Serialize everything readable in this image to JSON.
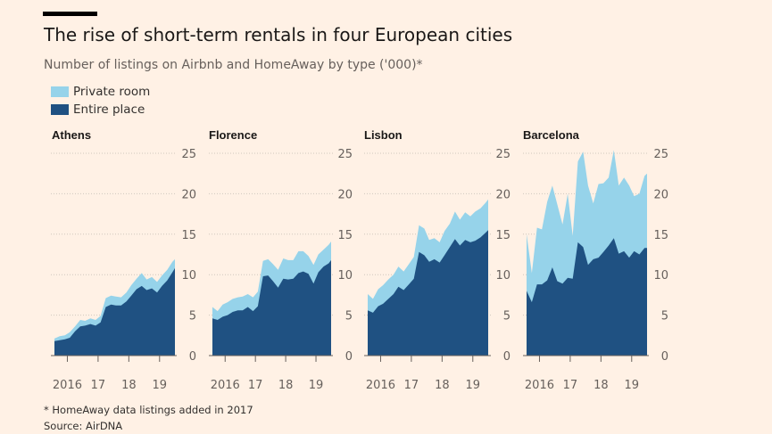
{
  "header": {
    "title": "The rise of short-term rentals in four European cities",
    "subtitle": "Number of listings on Airbnb and HomeAway by type ('000)*"
  },
  "legend": [
    {
      "label": "Private room",
      "color": "#96d3ea"
    },
    {
      "label": "Entire place",
      "color": "#1f5182"
    }
  ],
  "footer": {
    "footnote": "* HomeAway data listings added in 2017",
    "source": "Source: AirDNA"
  },
  "chart_data": [
    {
      "type": "area",
      "title": "Athens",
      "ylim": [
        0,
        25
      ],
      "yticks": [
        0,
        5,
        10,
        15,
        20,
        25
      ],
      "xticks": [
        {
          "label": "2016",
          "x": 2016.0
        },
        {
          "label": "17",
          "x": 2017.0
        },
        {
          "label": "18",
          "x": 2018.0
        },
        {
          "label": "19",
          "x": 2019.0
        }
      ],
      "xlim": [
        2015.58,
        2019.5
      ],
      "series": [
        {
          "name": "Private room",
          "x": [
            2015.58,
            2015.75,
            2015.92,
            2016.08,
            2016.25,
            2016.42,
            2016.58,
            2016.75,
            2016.92,
            2017.08,
            2017.25,
            2017.42,
            2017.58,
            2017.75,
            2017.92,
            2018.08,
            2018.25,
            2018.42,
            2018.58,
            2018.75,
            2018.92,
            2019.08,
            2019.25,
            2019.42,
            2019.5
          ],
          "values": [
            2.1,
            2.4,
            2.5,
            2.9,
            3.6,
            4.4,
            4.3,
            4.6,
            4.4,
            4.9,
            7.1,
            7.4,
            7.3,
            7.2,
            7.8,
            8.7,
            9.5,
            10.2,
            9.4,
            9.7,
            9.1,
            9.9,
            10.6,
            11.6,
            11.9
          ]
        },
        {
          "name": "Entire place",
          "x": [
            2015.58,
            2015.75,
            2015.92,
            2016.08,
            2016.25,
            2016.42,
            2016.58,
            2016.75,
            2016.92,
            2017.08,
            2017.25,
            2017.42,
            2017.58,
            2017.75,
            2017.92,
            2018.08,
            2018.25,
            2018.42,
            2018.58,
            2018.75,
            2018.92,
            2019.08,
            2019.25,
            2019.42,
            2019.5
          ],
          "values": [
            1.8,
            1.9,
            2.0,
            2.2,
            3.0,
            3.6,
            3.7,
            3.9,
            3.7,
            4.1,
            6.0,
            6.3,
            6.2,
            6.2,
            6.7,
            7.4,
            8.2,
            8.6,
            8.1,
            8.3,
            7.8,
            8.6,
            9.3,
            10.3,
            10.8
          ]
        }
      ]
    },
    {
      "type": "area",
      "title": "Florence",
      "ylim": [
        0,
        25
      ],
      "yticks": [
        0,
        5,
        10,
        15,
        20,
        25
      ],
      "xticks": [
        {
          "label": "2016",
          "x": 2016.0
        },
        {
          "label": "17",
          "x": 2017.0
        },
        {
          "label": "18",
          "x": 2018.0
        },
        {
          "label": "19",
          "x": 2019.0
        }
      ],
      "xlim": [
        2015.58,
        2019.5
      ],
      "series": [
        {
          "name": "Private room",
          "x": [
            2015.58,
            2015.75,
            2015.92,
            2016.08,
            2016.25,
            2016.42,
            2016.58,
            2016.75,
            2016.92,
            2017.08,
            2017.25,
            2017.42,
            2017.58,
            2017.75,
            2017.92,
            2018.08,
            2018.25,
            2018.42,
            2018.58,
            2018.75,
            2018.92,
            2019.08,
            2019.25,
            2019.42,
            2019.5
          ],
          "values": [
            6.0,
            5.5,
            6.3,
            6.6,
            7.0,
            7.2,
            7.3,
            7.6,
            7.2,
            7.9,
            11.7,
            11.9,
            11.3,
            10.6,
            12.0,
            11.8,
            11.8,
            12.9,
            12.9,
            12.3,
            11.2,
            12.5,
            13.1,
            13.7,
            14.1
          ]
        },
        {
          "name": "Entire place",
          "x": [
            2015.58,
            2015.75,
            2015.92,
            2016.08,
            2016.25,
            2016.42,
            2016.58,
            2016.75,
            2016.92,
            2017.08,
            2017.25,
            2017.42,
            2017.58,
            2017.75,
            2017.92,
            2018.08,
            2018.25,
            2018.42,
            2018.58,
            2018.75,
            2018.92,
            2019.08,
            2019.25,
            2019.42,
            2019.5
          ],
          "values": [
            4.6,
            4.4,
            4.8,
            5.0,
            5.4,
            5.6,
            5.6,
            6.0,
            5.5,
            6.1,
            9.8,
            9.9,
            9.2,
            8.4,
            9.5,
            9.4,
            9.5,
            10.2,
            10.4,
            10.1,
            8.9,
            10.3,
            11.0,
            11.4,
            11.8
          ]
        }
      ]
    },
    {
      "type": "area",
      "title": "Lisbon",
      "ylim": [
        0,
        25
      ],
      "yticks": [
        0,
        5,
        10,
        15,
        20,
        25
      ],
      "xticks": [
        {
          "label": "2016",
          "x": 2016.0
        },
        {
          "label": "17",
          "x": 2017.0
        },
        {
          "label": "18",
          "x": 2018.0
        },
        {
          "label": "19",
          "x": 2019.0
        }
      ],
      "xlim": [
        2015.58,
        2019.5
      ],
      "series": [
        {
          "name": "Private room",
          "x": [
            2015.58,
            2015.75,
            2015.92,
            2016.08,
            2016.25,
            2016.42,
            2016.58,
            2016.75,
            2016.92,
            2017.08,
            2017.25,
            2017.42,
            2017.58,
            2017.75,
            2017.92,
            2018.08,
            2018.25,
            2018.42,
            2018.58,
            2018.75,
            2018.92,
            2019.08,
            2019.25,
            2019.42,
            2019.5
          ],
          "values": [
            7.6,
            7.0,
            8.2,
            8.7,
            9.4,
            10.0,
            11.0,
            10.4,
            11.3,
            12.2,
            16.1,
            15.7,
            14.3,
            14.5,
            14.0,
            15.4,
            16.3,
            17.8,
            16.8,
            17.7,
            17.2,
            17.8,
            18.2,
            18.9,
            19.3
          ]
        },
        {
          "name": "Entire place",
          "x": [
            2015.58,
            2015.75,
            2015.92,
            2016.08,
            2016.25,
            2016.42,
            2016.58,
            2016.75,
            2016.92,
            2017.08,
            2017.25,
            2017.42,
            2017.58,
            2017.75,
            2017.92,
            2018.08,
            2018.25,
            2018.42,
            2018.58,
            2018.75,
            2018.92,
            2019.08,
            2019.25,
            2019.42,
            2019.5
          ],
          "values": [
            5.6,
            5.3,
            6.1,
            6.4,
            7.0,
            7.6,
            8.5,
            8.1,
            8.8,
            9.5,
            12.8,
            12.4,
            11.6,
            11.9,
            11.5,
            12.4,
            13.4,
            14.4,
            13.6,
            14.3,
            14.0,
            14.2,
            14.6,
            15.2,
            15.5
          ]
        }
      ]
    },
    {
      "type": "area",
      "title": "Barcelona",
      "ylim": [
        0,
        25
      ],
      "yticks": [
        0,
        5,
        10,
        15,
        20,
        25
      ],
      "xticks": [
        {
          "label": "2016",
          "x": 2016.0
        },
        {
          "label": "17",
          "x": 2017.0
        },
        {
          "label": "18",
          "x": 2018.0
        },
        {
          "label": "19",
          "x": 2019.0
        }
      ],
      "xlim": [
        2015.58,
        2019.5
      ],
      "series": [
        {
          "name": "Private room",
          "x": [
            2015.58,
            2015.75,
            2015.92,
            2016.08,
            2016.25,
            2016.42,
            2016.58,
            2016.75,
            2016.92,
            2017.08,
            2017.25,
            2017.42,
            2017.58,
            2017.75,
            2017.92,
            2018.08,
            2018.25,
            2018.42,
            2018.58,
            2018.75,
            2018.92,
            2019.08,
            2019.25,
            2019.42,
            2019.5
          ],
          "values": [
            15.0,
            10.2,
            15.8,
            15.6,
            19.0,
            21.0,
            18.7,
            16.2,
            20.0,
            14.8,
            24.0,
            25.2,
            21.0,
            18.8,
            21.2,
            21.3,
            22.0,
            25.4,
            21.0,
            22.0,
            21.0,
            19.7,
            20.0,
            22.2,
            22.5
          ]
        },
        {
          "name": "Entire place",
          "x": [
            2015.58,
            2015.75,
            2015.92,
            2016.08,
            2016.25,
            2016.42,
            2016.58,
            2016.75,
            2016.92,
            2017.08,
            2017.25,
            2017.42,
            2017.58,
            2017.75,
            2017.92,
            2018.08,
            2018.25,
            2018.42,
            2018.58,
            2018.75,
            2018.92,
            2019.08,
            2019.25,
            2019.42,
            2019.5
          ],
          "values": [
            8.0,
            6.6,
            8.8,
            8.8,
            9.3,
            10.9,
            9.2,
            8.9,
            9.6,
            9.5,
            14.0,
            13.4,
            11.2,
            11.9,
            12.1,
            12.8,
            13.6,
            14.5,
            12.6,
            12.9,
            12.1,
            12.9,
            12.5,
            13.3,
            13.3
          ]
        }
      ]
    }
  ]
}
